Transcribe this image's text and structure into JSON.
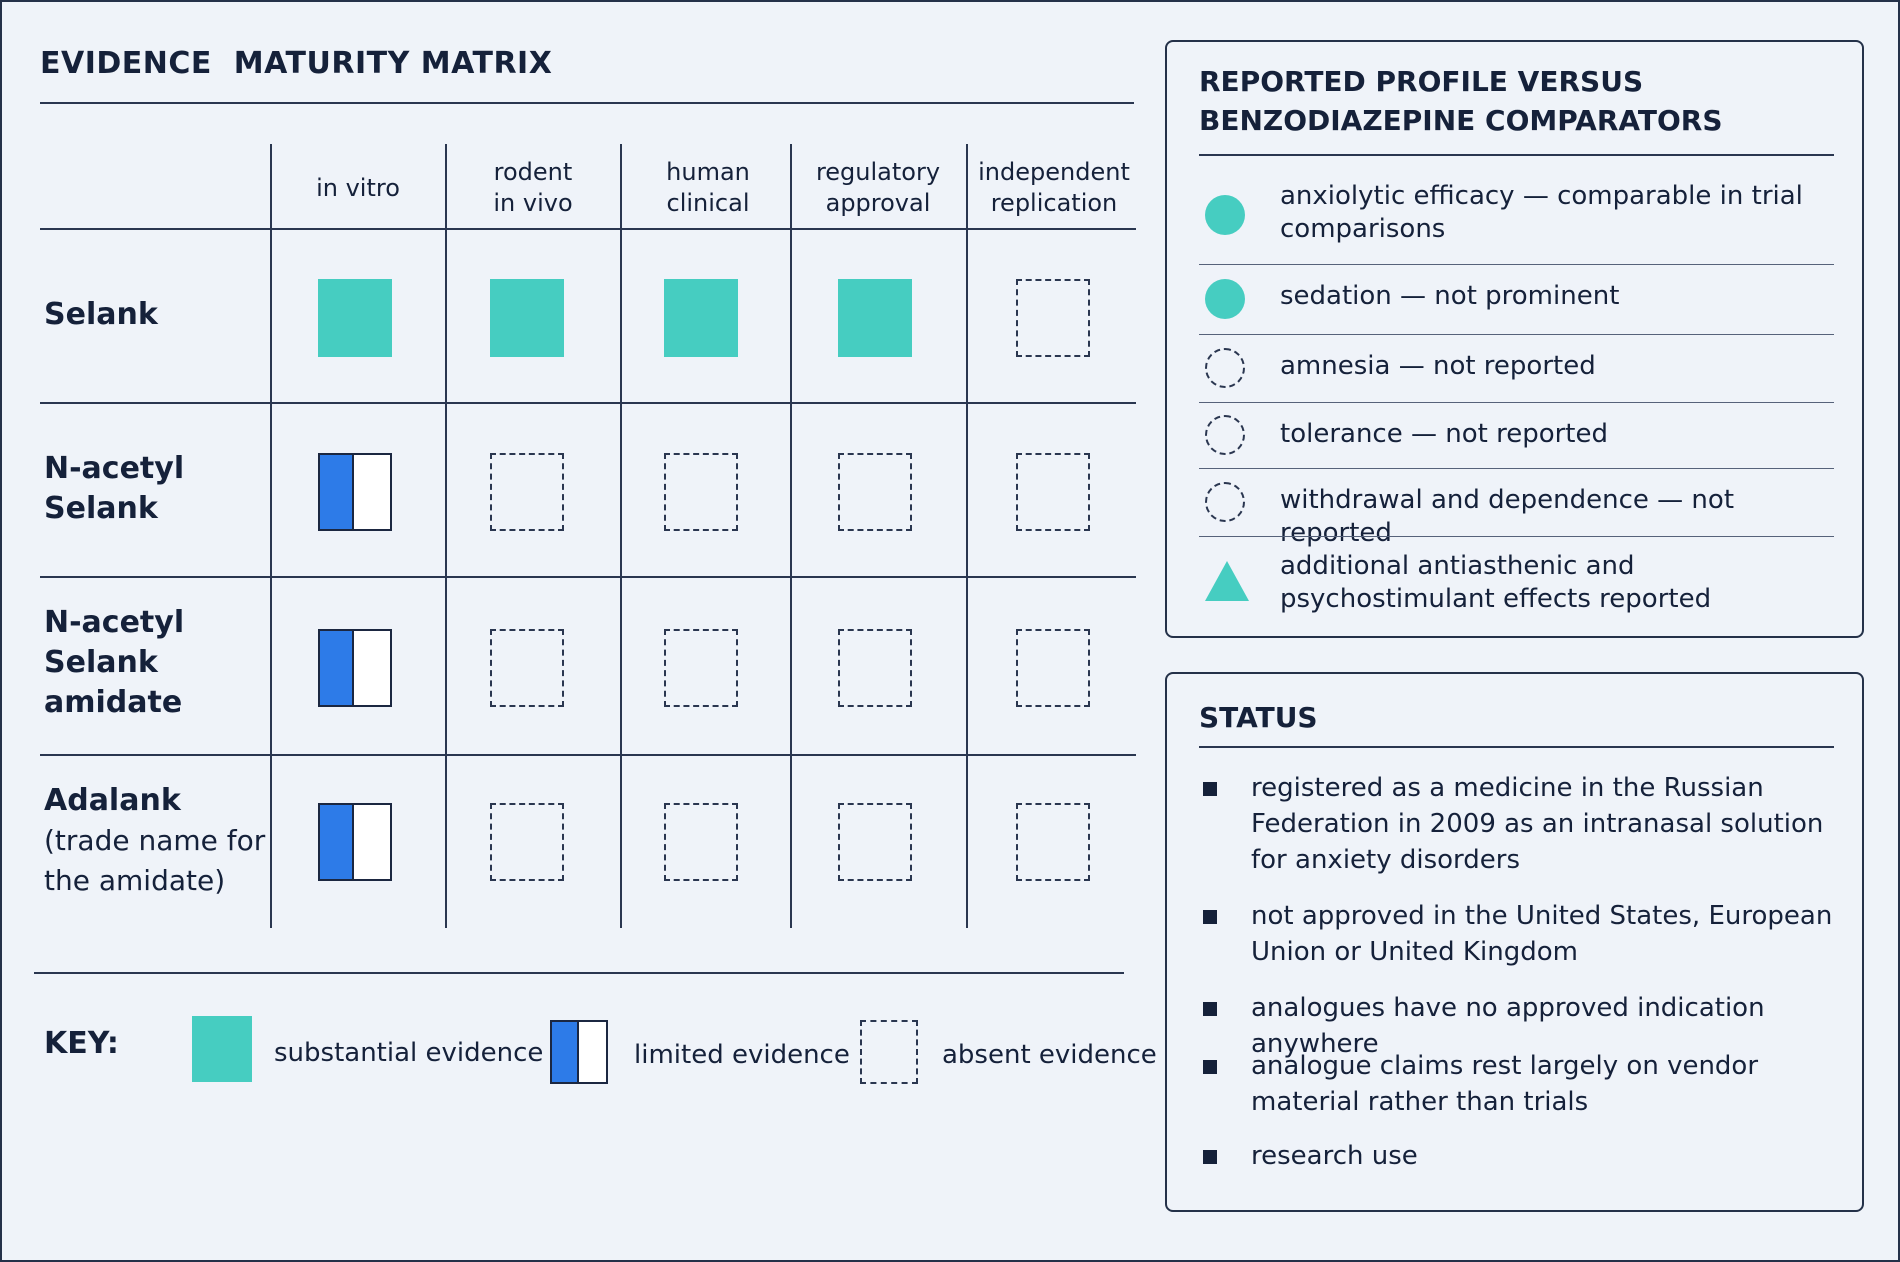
{
  "matrix": {
    "title": "EVIDENCE  MATURITY MATRIX",
    "columns": [
      "in vitro",
      "rodent\nin vivo",
      "human\nclinical",
      "regulatory\napproval",
      "independent\nreplication"
    ],
    "rows": [
      {
        "name": "Selank",
        "suffix": "",
        "evidence": [
          "substantial",
          "substantial",
          "substantial",
          "substantial",
          "absent"
        ]
      },
      {
        "name": "N-acetyl Selank",
        "suffix": "",
        "evidence": [
          "limited",
          "absent",
          "absent",
          "absent",
          "absent"
        ]
      },
      {
        "name": "N-acetyl Selank amidate",
        "suffix": "",
        "evidence": [
          "limited",
          "absent",
          "absent",
          "absent",
          "absent"
        ]
      },
      {
        "name": "Adalank",
        "suffix": " (trade name for the amidate)",
        "evidence": [
          "limited",
          "absent",
          "absent",
          "absent",
          "absent"
        ]
      }
    ]
  },
  "key": {
    "label": "KEY:",
    "substantial": "substantial evidence",
    "limited": "limited evidence",
    "absent": "absent evidence"
  },
  "colors": {
    "substantial": "#46cdc1",
    "limited": "#2d7be8",
    "line": "#2a3650"
  },
  "profile": {
    "title": "REPORTED PROFILE VERSUS\nBENZODIAZEPINE COMPARATORS",
    "items": [
      {
        "icon": "filled-circle-icon",
        "text": "anxiolytic efficacy — comparable in trial comparisons"
      },
      {
        "icon": "filled-circle-icon",
        "text": "sedation — not prominent"
      },
      {
        "icon": "dashed-circle-icon",
        "text": "amnesia — not reported"
      },
      {
        "icon": "dashed-circle-icon",
        "text": "tolerance — not reported"
      },
      {
        "icon": "dashed-circle-icon",
        "text": "withdrawal and dependence — not reported"
      },
      {
        "icon": "triangle-icon",
        "text": "additional antiasthenic and psychostimulant effects reported"
      }
    ]
  },
  "status": {
    "title": "STATUS",
    "items": [
      "registered as a medicine in the Russian Federation in 2009 as an intranasal solution for anxiety disorders",
      "not approved in the United States, European Union or United Kingdom",
      "analogues have no approved indication anywhere",
      "analogue claims rest largely on vendor material rather than trials",
      "research use"
    ]
  }
}
